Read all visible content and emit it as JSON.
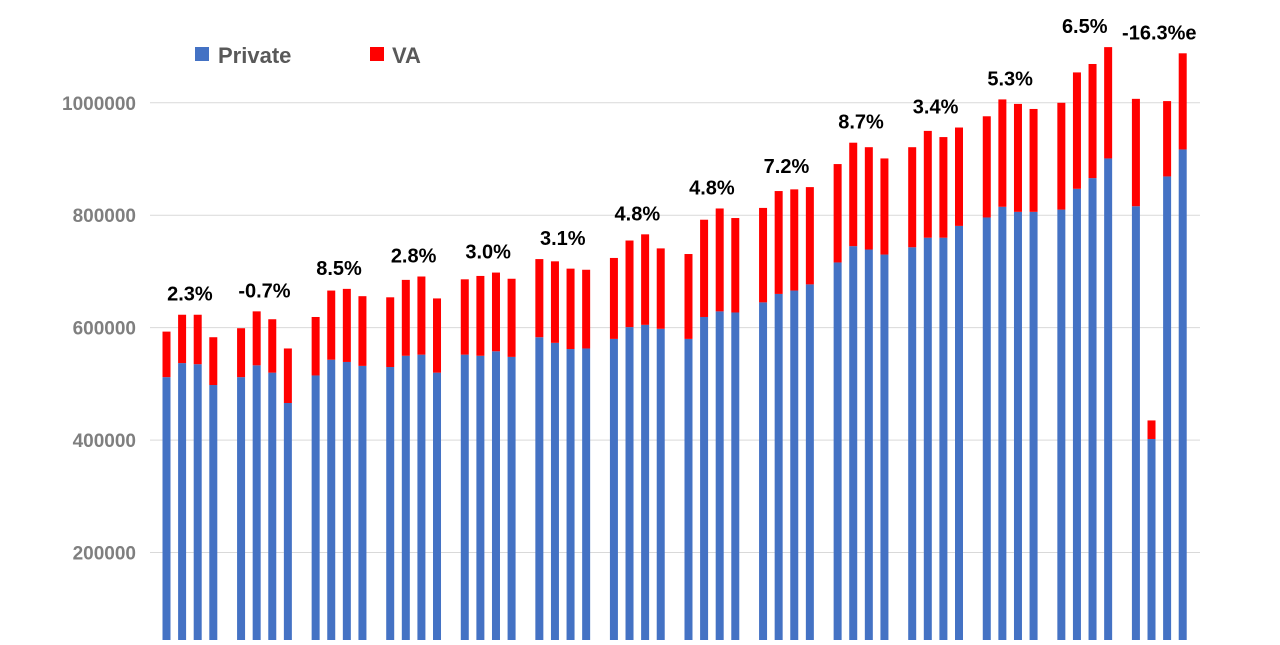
{
  "chart_data": {
    "type": "bar",
    "stacked": true,
    "title": "",
    "xlabel": "",
    "ylabel": "",
    "ylim": [
      0,
      1100000
    ],
    "yticks": [
      "200000",
      "400000",
      "600000",
      "800000",
      "1000000"
    ],
    "grid": true,
    "legend_position": "top-left",
    "colors": {
      "Private": "#4472c4",
      "VA": "#ff0000"
    },
    "legend": [
      "Private",
      "VA"
    ],
    "groups": [
      {
        "label": "2.3%",
        "private": [
          512000,
          537000,
          535000,
          498000
        ],
        "va": [
          81000,
          86000,
          88000,
          85000
        ]
      },
      {
        "label": "-0.7%",
        "private": [
          512000,
          533000,
          520000,
          466000
        ],
        "va": [
          87000,
          96000,
          95000,
          97000
        ]
      },
      {
        "label": "8.5%",
        "private": [
          515000,
          543000,
          539000,
          532000
        ],
        "va": [
          104000,
          123000,
          130000,
          124000
        ]
      },
      {
        "label": "2.8%",
        "private": [
          530000,
          550000,
          552000,
          520000
        ],
        "va": [
          124000,
          135000,
          139000,
          132000
        ]
      },
      {
        "label": "3.0%",
        "private": [
          552000,
          550000,
          558000,
          548000
        ],
        "va": [
          134000,
          142000,
          140000,
          139000
        ]
      },
      {
        "label": "3.1%",
        "private": [
          583000,
          573000,
          562000,
          563000
        ],
        "va": [
          139000,
          145000,
          143000,
          140000
        ]
      },
      {
        "label": "4.8%",
        "private": [
          580000,
          601000,
          605000,
          598000
        ],
        "va": [
          144000,
          154000,
          161000,
          143000
        ]
      },
      {
        "label": "4.8%",
        "private": [
          580000,
          619000,
          629000,
          627000
        ],
        "va": [
          151000,
          173000,
          183000,
          168000
        ]
      },
      {
        "label": "7.2%",
        "private": [
          645000,
          660000,
          666000,
          677000
        ],
        "va": [
          168000,
          183000,
          180000,
          173000
        ]
      },
      {
        "label": "8.7%",
        "private": [
          716000,
          745000,
          739000,
          730000
        ],
        "va": [
          175000,
          184000,
          182000,
          171000
        ]
      },
      {
        "label": "3.4%",
        "private": [
          743000,
          760000,
          760000,
          781000
        ],
        "va": [
          178000,
          190000,
          179000,
          175000
        ]
      },
      {
        "label": "5.3%",
        "private": [
          796000,
          815000,
          806000,
          806000
        ],
        "va": [
          180000,
          191000,
          192000,
          183000
        ]
      },
      {
        "label": "6.5%",
        "private": [
          810000,
          847000,
          866000,
          901000
        ],
        "va": [
          190000,
          207000,
          203000,
          198000
        ]
      },
      {
        "label": "-16.3%e",
        "private": [
          816000,
          402000,
          869000,
          917000
        ],
        "va": [
          191000,
          33000,
          134000,
          171000
        ]
      }
    ]
  }
}
